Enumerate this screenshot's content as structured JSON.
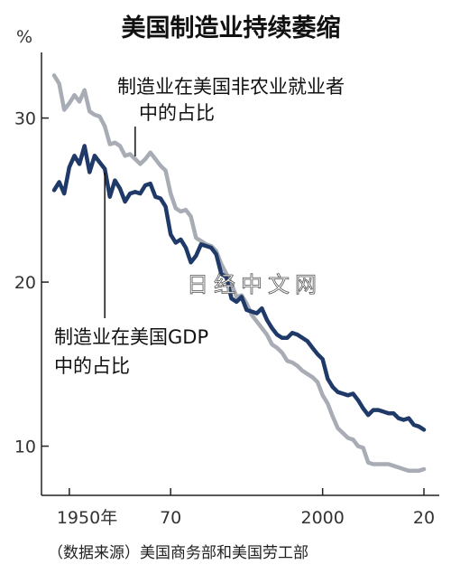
{
  "chart_data": {
    "type": "line",
    "title": "美国制造业持续萎缩",
    "ylabel": "%",
    "xlim": [
      1947,
      2020
    ],
    "ylim": [
      7,
      34
    ],
    "y_ticks": [
      10,
      20,
      30
    ],
    "x_ticks": [
      {
        "value": 1950,
        "label": "1950年"
      },
      {
        "value": 1970,
        "label": "70"
      },
      {
        "value": 2000,
        "label": "2000"
      },
      {
        "value": 2020,
        "label": "20"
      }
    ],
    "grid": false,
    "series": [
      {
        "name": "制造业在美国非农业就业者中的占比",
        "color": "#a8acb4",
        "x": [
          1947,
          1948,
          1949,
          1950,
          1951,
          1952,
          1953,
          1954,
          1955,
          1956,
          1957,
          1958,
          1959,
          1960,
          1961,
          1962,
          1963,
          1964,
          1965,
          1966,
          1967,
          1968,
          1969,
          1970,
          1971,
          1972,
          1973,
          1974,
          1975,
          1976,
          1977,
          1978,
          1979,
          1980,
          1981,
          1982,
          1983,
          1984,
          1985,
          1986,
          1987,
          1988,
          1989,
          1990,
          1991,
          1992,
          1993,
          1994,
          1995,
          1996,
          1997,
          1998,
          1999,
          2000,
          2001,
          2002,
          2003,
          2004,
          2005,
          2006,
          2007,
          2008,
          2009,
          2010,
          2011,
          2012,
          2013,
          2014,
          2015,
          2016,
          2017,
          2018,
          2019,
          2020
        ],
        "y": [
          32.6,
          32.1,
          30.5,
          30.9,
          31.4,
          31.0,
          31.7,
          30.4,
          30.2,
          30.1,
          29.5,
          28.4,
          28.5,
          28.3,
          27.7,
          27.8,
          27.5,
          27.2,
          27.5,
          27.9,
          27.5,
          27.1,
          26.8,
          25.4,
          24.5,
          24.3,
          24.4,
          24.0,
          22.7,
          22.5,
          22.3,
          22.2,
          21.9,
          21.1,
          20.5,
          19.9,
          19.1,
          19.2,
          18.7,
          18.0,
          17.6,
          17.2,
          16.8,
          16.2,
          16.0,
          15.7,
          15.2,
          15.1,
          14.9,
          14.6,
          14.4,
          14.2,
          13.9,
          13.1,
          12.6,
          11.8,
          11.1,
          10.8,
          10.5,
          10.4,
          10.0,
          9.9,
          9.0,
          8.9,
          8.9,
          8.9,
          8.9,
          8.8,
          8.7,
          8.6,
          8.5,
          8.5,
          8.5,
          8.6
        ]
      },
      {
        "name": "制造业在美国GDP中的占比",
        "color": "#1f3a68",
        "x": [
          1947,
          1948,
          1949,
          1950,
          1951,
          1952,
          1953,
          1954,
          1955,
          1956,
          1957,
          1958,
          1959,
          1960,
          1961,
          1962,
          1963,
          1964,
          1965,
          1966,
          1967,
          1968,
          1969,
          1970,
          1971,
          1972,
          1973,
          1974,
          1975,
          1976,
          1977,
          1978,
          1979,
          1980,
          1981,
          1982,
          1983,
          1984,
          1985,
          1986,
          1987,
          1988,
          1989,
          1990,
          1991,
          1992,
          1993,
          1994,
          1995,
          1996,
          1997,
          1998,
          1999,
          2000,
          2001,
          2002,
          2003,
          2004,
          2005,
          2006,
          2007,
          2008,
          2009,
          2010,
          2011,
          2012,
          2013,
          2014,
          2015,
          2016,
          2017,
          2018,
          2019,
          2020
        ],
        "y": [
          25.6,
          26.1,
          25.4,
          27.0,
          27.7,
          27.2,
          28.3,
          26.7,
          27.7,
          27.3,
          26.9,
          25.2,
          26.2,
          25.7,
          24.9,
          25.4,
          25.5,
          25.4,
          25.9,
          26.0,
          25.2,
          25.1,
          24.6,
          22.9,
          22.4,
          22.6,
          22.1,
          21.2,
          21.6,
          22.3,
          22.2,
          22.1,
          21.7,
          20.5,
          20.3,
          19.0,
          18.8,
          19.1,
          18.3,
          18.2,
          18.1,
          18.4,
          17.7,
          17.2,
          16.8,
          16.6,
          16.6,
          16.9,
          16.8,
          16.6,
          16.4,
          16.0,
          15.6,
          15.3,
          14.1,
          13.6,
          13.3,
          13.2,
          13.1,
          13.2,
          12.8,
          12.3,
          11.9,
          12.2,
          12.2,
          12.1,
          12.0,
          12.0,
          11.7,
          11.6,
          11.7,
          11.3,
          11.2,
          11.0
        ]
      }
    ],
    "annotations": [
      {
        "series": 0,
        "lines": [
          "制造业在美国非农业就业者",
          "中的占比"
        ]
      },
      {
        "series": 1,
        "lines": [
          "制造业在美国GDP",
          "中的占比"
        ]
      }
    ]
  },
  "source": "（数据来源）美国商务部和美国劳工部",
  "watermark": "日经中文网"
}
